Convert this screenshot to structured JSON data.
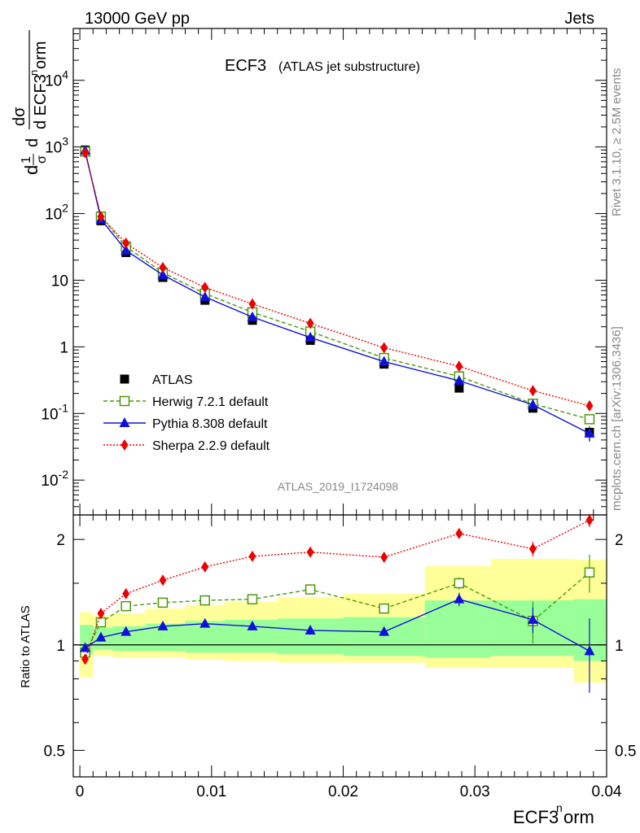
{
  "header": {
    "left": "13000 GeV pp",
    "right": "Jets"
  },
  "side": {
    "rivet": "Rivet 3.1.10, ≥ 2.5M events",
    "mcplots": "mcplots.cern.ch [arXiv:1306.3436]"
  },
  "chart_data": [
    {
      "type": "line",
      "scale": "log",
      "title": "ECF3",
      "subtitle": "(ATLAS jet substructure)",
      "analysis": "ATLAS_2019_I1724098",
      "ylabel": "1/σ dσ/d ECF3norm",
      "ylim": [
        0.003,
        60000
      ],
      "y_ticks": [
        "10^-2",
        "10^-1",
        "1",
        "10",
        "10^2",
        "10^3",
        "10^4"
      ],
      "x": [
        0.0004,
        0.0016,
        0.0035,
        0.0063,
        0.0095,
        0.0131,
        0.0175,
        0.0231,
        0.0288,
        0.0344,
        0.0387
      ],
      "legend_position": "center-left",
      "series": [
        {
          "name": "ATLAS",
          "color": "#000000",
          "marker": "square",
          "values": [
            900,
            78,
            26,
            11,
            5.0,
            2.5,
            1.25,
            0.55,
            0.24,
            0.12,
            0.052
          ],
          "yerr_lo": [
            0,
            0,
            0,
            0,
            0,
            0,
            0,
            0,
            0,
            0,
            0.014
          ],
          "yerr_hi": [
            0,
            0,
            0,
            0,
            0,
            0,
            0,
            0,
            0,
            0,
            0.012
          ]
        },
        {
          "name": "Herwig 7.2.1 default",
          "color": "#4a9a0a",
          "marker": "open-square",
          "dash": "dashed",
          "values": [
            850,
            90,
            32,
            13,
            6.3,
            3.3,
            1.7,
            0.68,
            0.36,
            0.14,
            0.082
          ]
        },
        {
          "name": "Pythia 8.308 default",
          "color": "#1010dd",
          "marker": "triangle",
          "dash": "solid",
          "values": [
            880,
            82,
            28,
            12,
            5.6,
            2.8,
            1.38,
            0.6,
            0.31,
            0.135,
            0.05
          ]
        },
        {
          "name": "Sherpa 2.2.9 default",
          "color": "#ee0000",
          "marker": "diamond",
          "dash": "dotted",
          "values": [
            820,
            90,
            36,
            15.5,
            7.8,
            4.4,
            2.25,
            0.97,
            0.51,
            0.22,
            0.13
          ]
        }
      ]
    },
    {
      "type": "line",
      "ylabel": "Ratio to ATLAS",
      "xlabel": "ECF3norm",
      "ylim": [
        0.42,
        2.35
      ],
      "xlim": [
        -0.0005,
        0.04
      ],
      "x_ticks": [
        "0",
        "0.01",
        "0.02",
        "0.03",
        "0.04"
      ],
      "y_ticks": [
        "0.5",
        "1",
        "2"
      ],
      "x": [
        0.0004,
        0.0016,
        0.0035,
        0.0063,
        0.0095,
        0.0131,
        0.0175,
        0.0231,
        0.0288,
        0.0344,
        0.0387
      ],
      "bin_edges": [
        0,
        0.001,
        0.0025,
        0.005,
        0.008,
        0.011,
        0.015,
        0.02,
        0.0262,
        0.0312,
        0.0375,
        0.04
      ],
      "band_yellow": {
        "color": "#ffff99",
        "lo": [
          0.81,
          0.93,
          0.92,
          0.92,
          0.91,
          0.9,
          0.89,
          0.89,
          0.86,
          0.86,
          0.78
        ],
        "hi": [
          1.24,
          1.21,
          1.23,
          1.27,
          1.3,
          1.33,
          1.37,
          1.4,
          1.68,
          1.76,
          1.75
        ]
      },
      "band_green": {
        "color": "#99ff99",
        "lo": [
          0.94,
          0.97,
          0.96,
          0.96,
          0.95,
          0.95,
          0.94,
          0.93,
          0.92,
          0.93,
          0.9
        ],
        "hi": [
          1.14,
          1.12,
          1.13,
          1.15,
          1.17,
          1.18,
          1.19,
          1.2,
          1.34,
          1.34,
          1.35
        ]
      },
      "series": [
        {
          "name": "Herwig 7.2.1 default",
          "color": "#4a9a0a",
          "values": [
            0.95,
            1.16,
            1.29,
            1.32,
            1.34,
            1.35,
            1.44,
            1.27,
            1.5,
            1.17,
            1.61
          ]
        },
        {
          "name": "Pythia 8.308 default",
          "color": "#1010dd",
          "values": [
            0.98,
            1.05,
            1.09,
            1.13,
            1.15,
            1.13,
            1.1,
            1.09,
            1.35,
            1.18,
            0.96
          ]
        },
        {
          "name": "Sherpa 2.2.9 default",
          "color": "#ee0000",
          "values": [
            0.91,
            1.23,
            1.4,
            1.53,
            1.67,
            1.79,
            1.84,
            1.78,
            2.08,
            1.88,
            2.27
          ]
        }
      ]
    }
  ]
}
